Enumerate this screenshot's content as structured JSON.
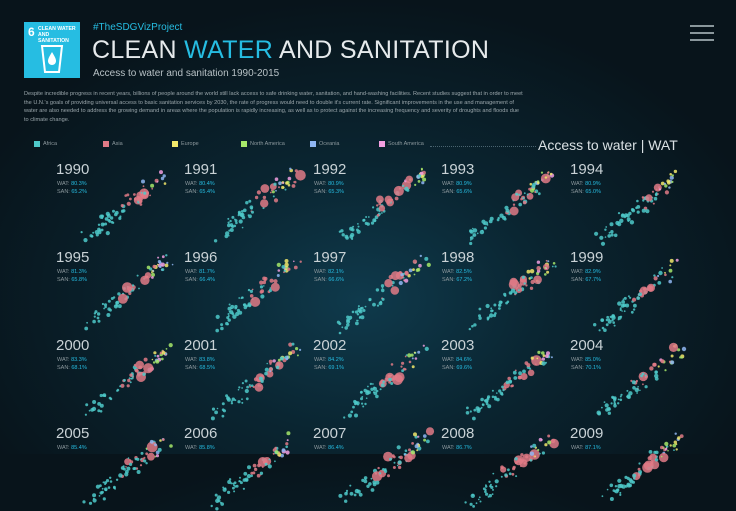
{
  "header": {
    "logo_number": "6",
    "logo_text": "CLEAN WATER AND SANITATION",
    "hashtag": "#TheSDGVizProject",
    "title_part1": "CLEAN ",
    "title_accent": "WATER",
    "title_part2": " AND SANITATION",
    "subtitle": "Access to water and sanitation 1990-2015",
    "description": "Despite incredible progress in recent years, billions of people around the world still lack access to safe drinking water, sanitation, and hand-washing facilities. Recent studies suggest that in order to meet the U.N.'s goals of providing universal access to basic sanitation services by 2030, the rate of progress would need to double it's current rate.  Significant improvements in the use and management of water are also needed to address the growing demand in areas where the population is rapidly increasing, as well as to protect against the increasing frequency and severity of droughts and floods due to climate change."
  },
  "menu_icon": "hamburger-menu-icon",
  "metric_selector": "Access to water | WAT",
  "legend": [
    {
      "label": "Africa",
      "color": "#4ec9c9"
    },
    {
      "label": "Asia",
      "color": "#e07a86"
    },
    {
      "label": "Europe",
      "color": "#f2e86b"
    },
    {
      "label": "North America",
      "color": "#a6e86a"
    },
    {
      "label": "Oceania",
      "color": "#8fb6f2"
    },
    {
      "label": "South America",
      "color": "#f29fe0"
    }
  ],
  "panels": [
    {
      "year": "1990",
      "wat_label": "WAT:",
      "wat": "80.3%",
      "san_label": "SAN:",
      "san": "65.2%"
    },
    {
      "year": "1991",
      "wat_label": "WAT:",
      "wat": "80.4%",
      "san_label": "SAN:",
      "san": "65.4%"
    },
    {
      "year": "1992",
      "wat_label": "WAT:",
      "wat": "80.9%",
      "san_label": "SAN:",
      "san": "65.3%"
    },
    {
      "year": "1993",
      "wat_label": "WAT:",
      "wat": "80.9%",
      "san_label": "SAN:",
      "san": "65.6%"
    },
    {
      "year": "1994",
      "wat_label": "WAT:",
      "wat": "80.9%",
      "san_label": "SAN:",
      "san": "65.0%"
    },
    {
      "year": "1995",
      "wat_label": "WAT:",
      "wat": "81.3%",
      "san_label": "SAN:",
      "san": "65.8%"
    },
    {
      "year": "1996",
      "wat_label": "WAT:",
      "wat": "81.7%",
      "san_label": "SAN:",
      "san": "66.4%"
    },
    {
      "year": "1997",
      "wat_label": "WAT:",
      "wat": "82.1%",
      "san_label": "SAN:",
      "san": "66.6%"
    },
    {
      "year": "1998",
      "wat_label": "WAT:",
      "wat": "82.5%",
      "san_label": "SAN:",
      "san": "67.2%"
    },
    {
      "year": "1999",
      "wat_label": "WAT:",
      "wat": "82.9%",
      "san_label": "SAN:",
      "san": "67.7%"
    },
    {
      "year": "2000",
      "wat_label": "WAT:",
      "wat": "83.3%",
      "san_label": "SAN:",
      "san": "68.1%"
    },
    {
      "year": "2001",
      "wat_label": "WAT:",
      "wat": "83.8%",
      "san_label": "SAN:",
      "san": "68.5%"
    },
    {
      "year": "2002",
      "wat_label": "WAT:",
      "wat": "84.2%",
      "san_label": "SAN:",
      "san": "69.1%"
    },
    {
      "year": "2003",
      "wat_label": "WAT:",
      "wat": "84.6%",
      "san_label": "SAN:",
      "san": "69.6%"
    },
    {
      "year": "2004",
      "wat_label": "WAT:",
      "wat": "85.0%",
      "san_label": "SAN:",
      "san": "70.1%"
    },
    {
      "year": "2005",
      "wat_label": "WAT:",
      "wat": "85.4%",
      "san_label": "",
      "san": ""
    },
    {
      "year": "2006",
      "wat_label": "WAT:",
      "wat": "85.8%",
      "san_label": "",
      "san": ""
    },
    {
      "year": "2007",
      "wat_label": "WAT:",
      "wat": "86.4%",
      "san_label": "",
      "san": ""
    },
    {
      "year": "2008",
      "wat_label": "WAT:",
      "wat": "86.7%",
      "san_label": "",
      "san": ""
    },
    {
      "year": "2009",
      "wat_label": "WAT:",
      "wat": "87.1%",
      "san_label": "",
      "san": ""
    }
  ]
}
